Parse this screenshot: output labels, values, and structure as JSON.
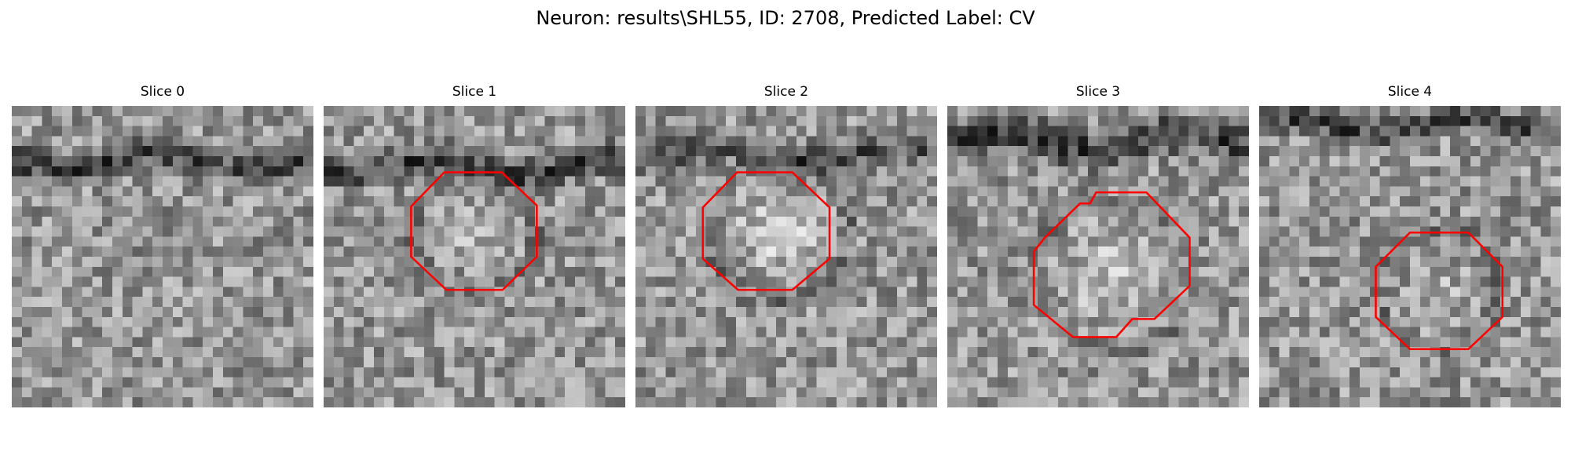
{
  "figure": {
    "title": "Neuron: results\\SHL55, ID: 2708, Predicted Label: CV",
    "outline_color": "#ff0000",
    "colormap": "gray"
  },
  "panels": [
    {
      "title": "Slice 0",
      "has_outline": false,
      "seed": 11
    },
    {
      "title": "Slice 1",
      "has_outline": true,
      "seed": 23
    },
    {
      "title": "Slice 2",
      "has_outline": true,
      "seed": 37
    },
    {
      "title": "Slice 3",
      "has_outline": true,
      "seed": 51
    },
    {
      "title": "Slice 4",
      "has_outline": true,
      "seed": 67
    }
  ]
}
